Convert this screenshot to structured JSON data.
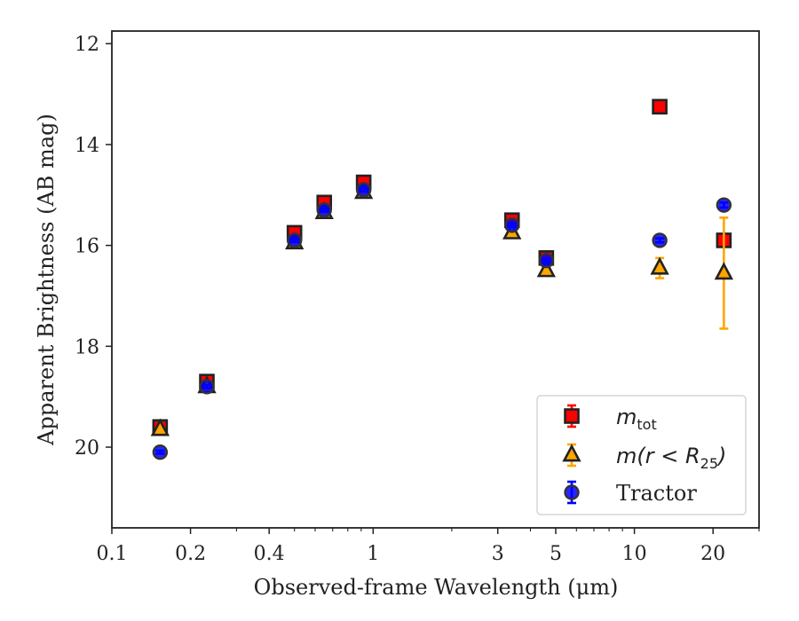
{
  "chart_data": {
    "type": "scatter",
    "xlabel": "Observed-frame Wavelength (μm)",
    "ylabel": "Apparent Brightness (AB mag)",
    "xscale": "log",
    "xlim": [
      0.1,
      30
    ],
    "ylim": [
      21.6,
      11.75
    ],
    "y_inverted": true,
    "x_ticks": [
      0.1,
      0.2,
      0.4,
      1,
      3,
      5,
      10,
      20
    ],
    "x_tick_labels": [
      "0.1",
      "0.2",
      "0.4",
      "1",
      "3",
      "5",
      "10",
      "20"
    ],
    "y_ticks": [
      12,
      14,
      16,
      18,
      20
    ],
    "y_tick_labels": [
      "12",
      "14",
      "16",
      "18",
      "20"
    ],
    "grid": false,
    "legend_position": "bottom-right",
    "series": [
      {
        "name": "m_tot",
        "legend_main": "m",
        "legend_sub": "tot",
        "marker": "square",
        "color": "#ff0000",
        "edge_color": "#222222",
        "x": [
          0.153,
          0.231,
          0.5,
          0.65,
          0.92,
          3.4,
          4.6,
          12.5,
          22.0
        ],
        "y": [
          19.6,
          18.7,
          15.75,
          15.15,
          14.75,
          15.5,
          16.25,
          13.25,
          15.9
        ],
        "yerr": [
          0.05,
          0.05,
          0.04,
          0.04,
          0.04,
          0.04,
          0.05,
          0.05,
          0.1
        ]
      },
      {
        "name": "m(r < R25)",
        "legend_main": "m(r < R",
        "legend_sub": "25",
        "legend_tail": ")",
        "marker": "triangle",
        "color": "#ffa500",
        "edge_color": "#222222",
        "x": [
          0.153,
          0.231,
          0.5,
          0.65,
          0.92,
          3.4,
          4.6,
          12.5,
          22.0
        ],
        "y": [
          19.65,
          18.8,
          15.95,
          15.35,
          14.95,
          15.75,
          16.5,
          16.45,
          16.55
        ],
        "yerr": [
          0.05,
          0.05,
          0.04,
          0.04,
          0.04,
          0.05,
          0.06,
          0.2,
          1.1
        ]
      },
      {
        "name": "Tractor",
        "legend_main": "Tractor",
        "marker": "circle",
        "color": "#0000ff",
        "edge_color": "#333333",
        "x": [
          0.153,
          0.231,
          0.5,
          0.65,
          0.92,
          3.4,
          4.6,
          12.5,
          22.0
        ],
        "y": [
          20.1,
          18.8,
          15.9,
          15.3,
          14.9,
          15.6,
          16.3,
          15.9,
          15.2
        ],
        "yerr": [
          0.03,
          0.03,
          0.03,
          0.03,
          0.03,
          0.03,
          0.03,
          0.04,
          0.05
        ]
      }
    ]
  }
}
